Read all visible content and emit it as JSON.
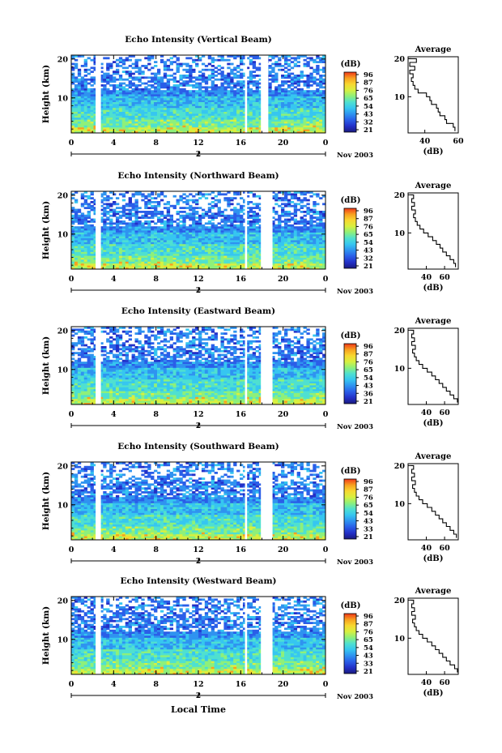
{
  "figure": {
    "xlabel": "Local Time",
    "date_label": "Nov 2003",
    "colorbar_unit": "(dB)",
    "avg_title": "Average",
    "avg_xlabel": "(dB)",
    "ylabel": "Height (km)"
  },
  "colors": {
    "scale": [
      "#1a1a80",
      "#2330c8",
      "#2a5ee8",
      "#2f93f0",
      "#36c6f0",
      "#4fe0d0",
      "#8ef07a",
      "#d8f040",
      "#f8d830",
      "#f8a020",
      "#f03818"
    ],
    "grid": "#000000",
    "gap": "#ffffff"
  },
  "chart_data": [
    {
      "type": "heatmap",
      "title": "Echo Intensity (Vertical Beam)",
      "x_ticks": [
        "0",
        "4",
        "8",
        "12",
        "16",
        "20",
        "0"
      ],
      "x_range": [
        0,
        24
      ],
      "x_midlabel": "2",
      "y_ticks": [
        "20",
        "10"
      ],
      "y_range": [
        1,
        21
      ],
      "data_gaps_hours": [
        [
          2.3,
          2.8
        ],
        [
          16.4,
          16.6
        ],
        [
          17.9,
          18.6
        ]
      ],
      "colorbar_ticks": [
        "96",
        "87",
        "76",
        "65",
        "54",
        "43",
        "32",
        "21"
      ],
      "avg_profile": {
        "xlim": [
          30,
          60
        ],
        "x_ticks": [
          "40",
          "60"
        ],
        "y_ticks": [
          "20",
          "10"
        ],
        "height_km": [
          1,
          2,
          3,
          4,
          5,
          6,
          7,
          8,
          9,
          10,
          11,
          12,
          13,
          14,
          15,
          16,
          17,
          18,
          19,
          20
        ],
        "db": [
          58,
          57,
          53,
          52,
          49,
          48,
          47,
          44,
          43,
          41,
          36,
          34,
          33,
          32,
          33,
          31,
          34,
          31,
          35,
          30
        ]
      }
    },
    {
      "type": "heatmap",
      "title": "Echo Intensity (Northward Beam)",
      "x_ticks": [
        "0",
        "4",
        "8",
        "12",
        "16",
        "20",
        "0"
      ],
      "x_range": [
        0,
        24
      ],
      "x_midlabel": "2",
      "y_ticks": [
        "20",
        "10"
      ],
      "y_range": [
        1,
        21
      ],
      "data_gaps_hours": [
        [
          2.3,
          2.8
        ],
        [
          16.4,
          16.6
        ],
        [
          17.9,
          19.0
        ]
      ],
      "colorbar_ticks": [
        "96",
        "87",
        "76",
        "65",
        "54",
        "43",
        "32",
        "21"
      ],
      "avg_profile": {
        "xlim": [
          20,
          75
        ],
        "x_ticks": [
          "40",
          "60"
        ],
        "y_ticks": [
          "20",
          "10"
        ],
        "height_km": [
          1,
          2,
          3,
          4,
          5,
          6,
          7,
          8,
          9,
          10,
          11,
          12,
          13,
          14,
          15,
          16,
          17,
          18,
          19,
          20
        ],
        "db": [
          72,
          70,
          66,
          62,
          58,
          55,
          51,
          47,
          42,
          37,
          33,
          30,
          28,
          26,
          28,
          24,
          27,
          24,
          26,
          23
        ]
      }
    },
    {
      "type": "heatmap",
      "title": "Echo Intensity (Eastward Beam)",
      "x_ticks": [
        "0",
        "4",
        "8",
        "12",
        "16",
        "20",
        "0"
      ],
      "x_range": [
        0,
        24
      ],
      "x_midlabel": "2",
      "y_ticks": [
        "20",
        "10"
      ],
      "y_range": [
        1,
        21
      ],
      "data_gaps_hours": [
        [
          2.3,
          2.8
        ],
        [
          16.4,
          16.6
        ],
        [
          17.9,
          19.0
        ]
      ],
      "colorbar_ticks": [
        "96",
        "87",
        "76",
        "65",
        "54",
        "43",
        "36",
        "21"
      ],
      "avg_profile": {
        "xlim": [
          20,
          75
        ],
        "x_ticks": [
          "40",
          "60"
        ],
        "y_ticks": [
          "20",
          "10"
        ],
        "height_km": [
          1,
          2,
          3,
          4,
          5,
          6,
          7,
          8,
          9,
          10,
          11,
          12,
          13,
          14,
          15,
          16,
          17,
          18,
          19,
          20
        ],
        "db": [
          74,
          70,
          66,
          62,
          58,
          54,
          50,
          46,
          41,
          36,
          32,
          29,
          27,
          25,
          28,
          24,
          27,
          24,
          26,
          23
        ]
      }
    },
    {
      "type": "heatmap",
      "title": "Echo Intensity (Southward Beam)",
      "x_ticks": [
        "0",
        "4",
        "8",
        "12",
        "16",
        "20",
        "0"
      ],
      "x_range": [
        0,
        24
      ],
      "x_midlabel": "2",
      "y_ticks": [
        "20",
        "10"
      ],
      "y_range": [
        1,
        21
      ],
      "data_gaps_hours": [
        [
          2.3,
          2.8
        ],
        [
          16.4,
          16.6
        ],
        [
          17.9,
          19.0
        ]
      ],
      "colorbar_ticks": [
        "96",
        "87",
        "76",
        "65",
        "54",
        "43",
        "33",
        "21"
      ],
      "avg_profile": {
        "xlim": [
          20,
          75
        ],
        "x_ticks": [
          "40",
          "60"
        ],
        "y_ticks": [
          "20",
          "10"
        ],
        "height_km": [
          1,
          2,
          3,
          4,
          5,
          6,
          7,
          8,
          9,
          10,
          11,
          12,
          13,
          14,
          15,
          16,
          17,
          18,
          19,
          20
        ],
        "db": [
          73,
          70,
          66,
          62,
          58,
          54,
          50,
          46,
          41,
          36,
          32,
          29,
          27,
          25,
          28,
          24,
          27,
          24,
          26,
          23
        ]
      }
    },
    {
      "type": "heatmap",
      "title": "Echo Intensity (Westward Beam)",
      "x_ticks": [
        "0",
        "4",
        "8",
        "12",
        "16",
        "20",
        "0"
      ],
      "x_range": [
        0,
        24
      ],
      "x_midlabel": "2",
      "y_ticks": [
        "20",
        "10"
      ],
      "y_range": [
        1,
        21
      ],
      "data_gaps_hours": [
        [
          2.3,
          2.8
        ],
        [
          16.4,
          16.6
        ],
        [
          17.9,
          19.0
        ]
      ],
      "colorbar_ticks": [
        "96",
        "87",
        "76",
        "65",
        "54",
        "43",
        "33",
        "21"
      ],
      "avg_profile": {
        "xlim": [
          20,
          75
        ],
        "x_ticks": [
          "40",
          "60"
        ],
        "y_ticks": [
          "20",
          "10"
        ],
        "height_km": [
          1,
          2,
          3,
          4,
          5,
          6,
          7,
          8,
          9,
          10,
          11,
          12,
          13,
          14,
          15,
          16,
          17,
          18,
          19,
          20
        ],
        "db": [
          74,
          71,
          66,
          62,
          58,
          54,
          50,
          46,
          41,
          36,
          32,
          29,
          27,
          25,
          28,
          24,
          27,
          24,
          26,
          23
        ]
      }
    }
  ]
}
